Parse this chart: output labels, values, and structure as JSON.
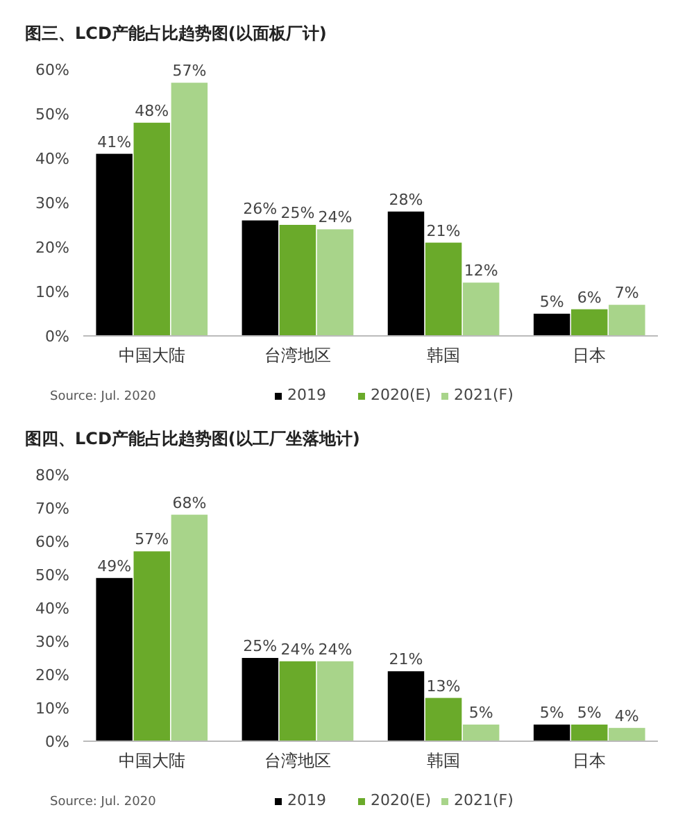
{
  "chart_data": [
    {
      "type": "bar",
      "title": "图三、LCD产能占比趋势图(以面板厂计)",
      "categories": [
        "中国大陆",
        "台湾地区",
        "韩国",
        "日本"
      ],
      "series": [
        {
          "name": "2019",
          "color": "#000000",
          "values": [
            41,
            26,
            28,
            5
          ],
          "value_labels": [
            "41%",
            "26%",
            "28%",
            "5%"
          ]
        },
        {
          "name": "2020(E)",
          "color": "#6aaa2a",
          "values": [
            48,
            25,
            21,
            6
          ],
          "value_labels": [
            "48%",
            "25%",
            "21%",
            "6%"
          ]
        },
        {
          "name": "2021(F)",
          "color": "#a8d48a",
          "values": [
            57,
            24,
            12,
            7
          ],
          "value_labels": [
            "57%",
            "24%",
            "12%",
            "7%"
          ]
        }
      ],
      "ylim": [
        0,
        60
      ],
      "yticks": [
        {
          "value": 0,
          "label": "0%"
        },
        {
          "value": 10,
          "label": "10%"
        },
        {
          "value": 20,
          "label": "20%"
        },
        {
          "value": 30,
          "label": "30%"
        },
        {
          "value": 40,
          "label": "40%"
        },
        {
          "value": 50,
          "label": "50%"
        },
        {
          "value": 60,
          "label": "60%"
        }
      ],
      "grid": false,
      "legend": "bottom",
      "annotations": [
        "Source: Jul. 2020"
      ]
    },
    {
      "type": "bar",
      "title": "图四、LCD产能占比趋势图(以工厂坐落地计)",
      "categories": [
        "中国大陆",
        "台湾地区",
        "韩国",
        "日本"
      ],
      "series": [
        {
          "name": "2019",
          "color": "#000000",
          "values": [
            49,
            25,
            21,
            5
          ],
          "value_labels": [
            "49%",
            "25%",
            "21%",
            "5%"
          ]
        },
        {
          "name": "2020(E)",
          "color": "#6aaa2a",
          "values": [
            57,
            24,
            13,
            5
          ],
          "value_labels": [
            "57%",
            "24%",
            "13%",
            "5%"
          ]
        },
        {
          "name": "2021(F)",
          "color": "#a8d48a",
          "values": [
            68,
            24,
            5,
            4
          ],
          "value_labels": [
            "68%",
            "24%",
            "5%",
            "4%"
          ]
        }
      ],
      "ylim": [
        0,
        80
      ],
      "yticks": [
        {
          "value": 0,
          "label": "0%"
        },
        {
          "value": 10,
          "label": "10%"
        },
        {
          "value": 20,
          "label": "20%"
        },
        {
          "value": 30,
          "label": "30%"
        },
        {
          "value": 40,
          "label": "40%"
        },
        {
          "value": 50,
          "label": "50%"
        },
        {
          "value": 60,
          "label": "60%"
        },
        {
          "value": 70,
          "label": "70%"
        },
        {
          "value": 80,
          "label": "80%"
        }
      ],
      "grid": false,
      "legend": "bottom",
      "annotations": [
        "Source: Jul. 2020"
      ]
    }
  ]
}
